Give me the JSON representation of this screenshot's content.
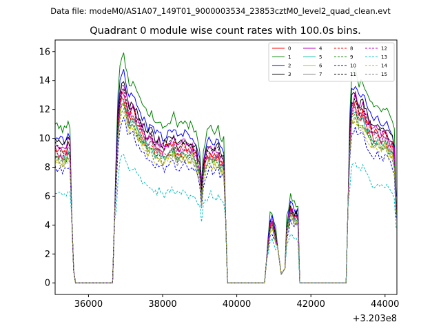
{
  "chart_data": {
    "type": "line",
    "suptitle": "Data file: modeM0/AS1A07_149T01_9000003534_23853cztM0_level2_quad_clean.evt",
    "title": "Quadrant 0 module wise count rates with 100.0s bins.",
    "xlabel": "",
    "ylabel": "",
    "x_offset_label": "+3.203e8",
    "xlim": [
      35100,
      44320
    ],
    "ylim": [
      -0.8,
      16.8
    ],
    "x_ticks": [
      36000,
      38000,
      40000,
      42000,
      44000
    ],
    "x_tick_labels": [
      "36000",
      "38000",
      "40000",
      "42000",
      "44000"
    ],
    "y_ticks": [
      0,
      2,
      4,
      6,
      8,
      10,
      12,
      14,
      16
    ],
    "y_tick_labels": [
      "0",
      "2",
      "4",
      "6",
      "8",
      "10",
      "12",
      "14",
      "16"
    ],
    "legend_position": "upper-right",
    "segments": [
      {
        "start": 35100,
        "end": 35500
      },
      {
        "start": 36750,
        "end": 39650
      },
      {
        "start": 40850,
        "end": 41050
      },
      {
        "start": 41350,
        "end": 41650
      },
      {
        "start": 43050,
        "end": 44320
      }
    ],
    "series": [
      {
        "name": "0",
        "color": "#ff0000",
        "dash": "solid",
        "scale": 0.93,
        "noise": 0.35
      },
      {
        "name": "1",
        "color": "#008000",
        "dash": "solid",
        "scale": 1.1,
        "noise": 0.3
      },
      {
        "name": "2",
        "color": "#0000ff",
        "dash": "solid",
        "scale": 1.02,
        "noise": 0.3
      },
      {
        "name": "3",
        "color": "#000000",
        "dash": "solid",
        "scale": 0.98,
        "noise": 0.3
      },
      {
        "name": "4",
        "color": "#bf00bf",
        "dash": "solid",
        "scale": 0.96,
        "noise": 0.3
      },
      {
        "name": "5",
        "color": "#00bfa0",
        "dash": "solid",
        "scale": 0.88,
        "noise": 0.3
      },
      {
        "name": "6",
        "color": "#bfbf00",
        "dash": "solid",
        "scale": 0.86,
        "noise": 0.3
      },
      {
        "name": "7",
        "color": "#808080",
        "dash": "solid",
        "scale": 0.9,
        "noise": 0.3
      },
      {
        "name": "8",
        "color": "#ff0000",
        "dash": "dashed",
        "scale": 0.9,
        "noise": 0.3
      },
      {
        "name": "9",
        "color": "#008000",
        "dash": "dashed",
        "scale": 0.87,
        "noise": 0.3
      },
      {
        "name": "10",
        "color": "#0000ff",
        "dash": "dashed",
        "scale": 0.8,
        "noise": 0.3
      },
      {
        "name": "11",
        "color": "#000000",
        "dash": "dashed",
        "scale": 0.95,
        "noise": 0.3
      },
      {
        "name": "12",
        "color": "#bf00bf",
        "dash": "dashed",
        "scale": 0.92,
        "noise": 0.3
      },
      {
        "name": "13",
        "color": "#00bfbf",
        "dash": "dashed",
        "scale": 0.62,
        "noise": 0.3
      },
      {
        "name": "14",
        "color": "#bfbf00",
        "dash": "dashed",
        "scale": 0.84,
        "noise": 0.3
      },
      {
        "name": "15",
        "color": "#808080",
        "dash": "dashed",
        "scale": 0.85,
        "noise": 0.3
      }
    ],
    "reference_profile": [
      [
        35100,
        10.0
      ],
      [
        35200,
        9.8
      ],
      [
        35300,
        9.6
      ],
      [
        35400,
        9.8
      ],
      [
        35450,
        10.2
      ],
      [
        35500,
        10.0
      ],
      [
        35580,
        1.2
      ],
      [
        35650,
        0.0
      ],
      [
        36650,
        0.0
      ],
      [
        36750,
        8.5
      ],
      [
        36800,
        12.0
      ],
      [
        36850,
        13.5
      ],
      [
        36900,
        14.0
      ],
      [
        36950,
        14.2
      ],
      [
        37000,
        13.5
      ],
      [
        37100,
        12.5
      ],
      [
        37200,
        12.8
      ],
      [
        37300,
        12.0
      ],
      [
        37400,
        11.5
      ],
      [
        37500,
        11.0
      ],
      [
        37600,
        10.5
      ],
      [
        37700,
        10.8
      ],
      [
        37800,
        10.0
      ],
      [
        37900,
        10.2
      ],
      [
        38000,
        9.8
      ],
      [
        38100,
        10.0
      ],
      [
        38200,
        10.2
      ],
      [
        38300,
        10.5
      ],
      [
        38400,
        9.8
      ],
      [
        38500,
        10.0
      ],
      [
        38600,
        10.2
      ],
      [
        38700,
        9.9
      ],
      [
        38800,
        10.0
      ],
      [
        38900,
        9.5
      ],
      [
        39000,
        8.5
      ],
      [
        39050,
        6.5
      ],
      [
        39100,
        8.5
      ],
      [
        39200,
        9.5
      ],
      [
        39300,
        9.8
      ],
      [
        39400,
        9.5
      ],
      [
        39500,
        9.7
      ],
      [
        39550,
        9.2
      ],
      [
        39650,
        9.0
      ],
      [
        39750,
        0.0
      ],
      [
        40750,
        0.0
      ],
      [
        40850,
        3.0
      ],
      [
        40900,
        4.2
      ],
      [
        40950,
        4.5
      ],
      [
        41000,
        4.0
      ],
      [
        41050,
        3.5
      ],
      [
        41200,
        0.6
      ],
      [
        41300,
        1.0
      ],
      [
        41350,
        4.0
      ],
      [
        41450,
        5.5
      ],
      [
        41550,
        5.0
      ],
      [
        41650,
        4.8
      ],
      [
        41700,
        0.0
      ],
      [
        42950,
        0.0
      ],
      [
        43050,
        10.5
      ],
      [
        43100,
        13.0
      ],
      [
        43200,
        13.5
      ],
      [
        43300,
        12.5
      ],
      [
        43400,
        12.8
      ],
      [
        43500,
        12.0
      ],
      [
        43600,
        11.5
      ],
      [
        43700,
        11.0
      ],
      [
        43800,
        11.2
      ],
      [
        43900,
        10.8
      ],
      [
        44000,
        11.0
      ],
      [
        44100,
        10.5
      ],
      [
        44200,
        10.2
      ],
      [
        44250,
        9.5
      ],
      [
        44320,
        4.0
      ]
    ]
  }
}
